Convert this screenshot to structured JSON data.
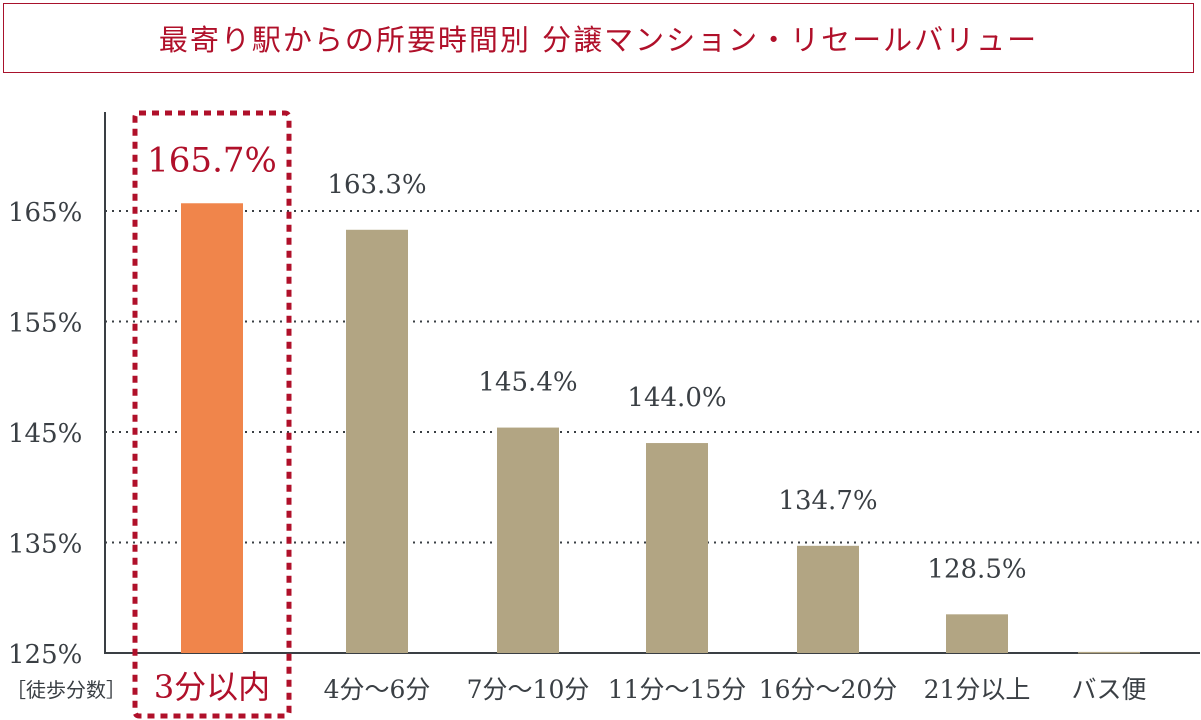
{
  "chart_data": {
    "type": "bar",
    "title": "最寄り駅からの所要時間別 分譲マンション・リセールバリュー",
    "xlabel": "［徒歩分数］",
    "ylabel": "",
    "ylim": [
      125,
      170
    ],
    "yticks": [
      125,
      135,
      145,
      155,
      165
    ],
    "ytick_labels": [
      "125%",
      "135%",
      "145%",
      "155%",
      "165%"
    ],
    "grid": "dotted horizontal",
    "categories": [
      "3分以内",
      "4分～6分",
      "7分～10分",
      "11分～15分",
      "16分～20分",
      "21分以上",
      "バス便"
    ],
    "values": [
      165.7,
      163.3,
      145.4,
      144.0,
      134.7,
      128.5,
      125.1
    ],
    "data_labels": [
      "165.7%",
      "163.3%",
      "145.4%",
      "144.0%",
      "134.7%",
      "128.5%",
      ""
    ],
    "highlight_index": 0,
    "colors": {
      "highlight": "#f0854b",
      "default": "#b2a583",
      "accent": "#b0102a",
      "axis": "#3a3f44"
    }
  }
}
